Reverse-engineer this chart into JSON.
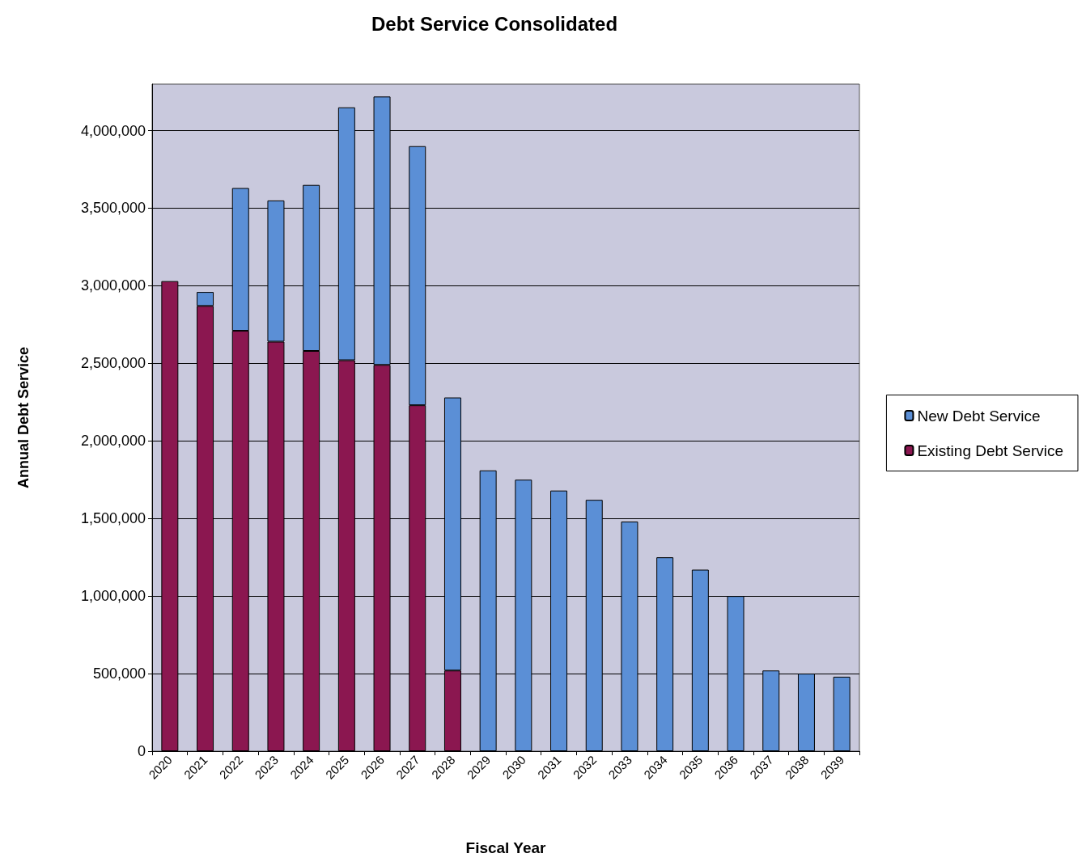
{
  "chart_data": {
    "type": "bar",
    "title": "Debt Service Consolidated",
    "xlabel": "Fiscal Year",
    "ylabel": "Annual Debt Service",
    "categories": [
      "2020",
      "2021",
      "2022",
      "2023",
      "2024",
      "2025",
      "2026",
      "2027",
      "2028",
      "2029",
      "2030",
      "2031",
      "2032",
      "2033",
      "2034",
      "2035",
      "2036",
      "2037",
      "2038",
      "2039"
    ],
    "stacked": true,
    "series": [
      {
        "name": "Existing Debt Service",
        "color": "#8b1750",
        "values": [
          3030000,
          2870000,
          2710000,
          2640000,
          2580000,
          2520000,
          2490000,
          2230000,
          520000,
          null,
          null,
          null,
          null,
          null,
          null,
          null,
          null,
          null,
          null,
          null
        ]
      },
      {
        "name": "New Debt Service",
        "color": "#5b8fd6",
        "values": [
          null,
          90000,
          920000,
          910000,
          1070000,
          1630000,
          1730000,
          1670000,
          1760000,
          1810000,
          1750000,
          1680000,
          1620000,
          1480000,
          1250000,
          1170000,
          1000000,
          520000,
          500000,
          480000
        ]
      }
    ],
    "ylim": [
      0,
      4300000
    ],
    "yticks": [
      0,
      {
        "value": 500000,
        "label": "500,000"
      },
      {
        "value": 1000000,
        "label": "1,000,000"
      },
      {
        "value": 1500000,
        "label": "1,500,000"
      },
      {
        "value": 2000000,
        "label": "2,000,000"
      },
      {
        "value": 2500000,
        "label": "2,500,000"
      },
      {
        "value": 3000000,
        "label": "3,000,000"
      },
      {
        "value": 3500000,
        "label": "3,500,000"
      },
      {
        "value": 4000000,
        "label": "4,000,000"
      }
    ],
    "grid": "y",
    "legend": "right"
  }
}
